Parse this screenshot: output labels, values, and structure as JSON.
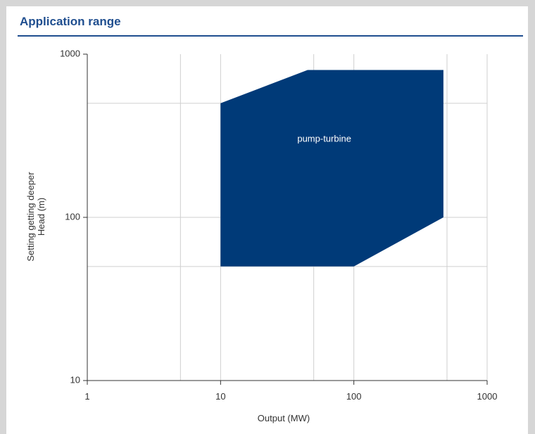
{
  "title": "Application range",
  "chart_data": {
    "type": "area",
    "x_scale": "log",
    "y_scale": "log",
    "xlabel": "Output (MW)",
    "ylabel_lines": [
      "Setting getting deeper",
      "Head (m)"
    ],
    "xlim": [
      1,
      1000
    ],
    "ylim": [
      10,
      1000
    ],
    "x_ticks": [
      {
        "value": 1,
        "label": "1"
      },
      {
        "value": 10,
        "label": "10"
      },
      {
        "value": 100,
        "label": "100"
      },
      {
        "value": 1000,
        "label": "1000"
      }
    ],
    "y_ticks": [
      {
        "value": 10,
        "label": "10"
      },
      {
        "value": 100,
        "label": "100"
      },
      {
        "value": 1000,
        "label": "1000"
      }
    ],
    "x_grid": [
      5,
      10,
      50,
      100,
      500,
      1000
    ],
    "y_grid": [
      50,
      100,
      500
    ],
    "grid": true,
    "regions": [
      {
        "label": "pump-turbine",
        "label_position": [
          60,
          300
        ],
        "color": "#003a78",
        "points": [
          [
            10,
            50
          ],
          [
            10,
            500
          ],
          [
            45,
            800
          ],
          [
            470,
            800
          ],
          [
            470,
            100
          ],
          [
            100,
            50
          ]
        ]
      }
    ]
  }
}
